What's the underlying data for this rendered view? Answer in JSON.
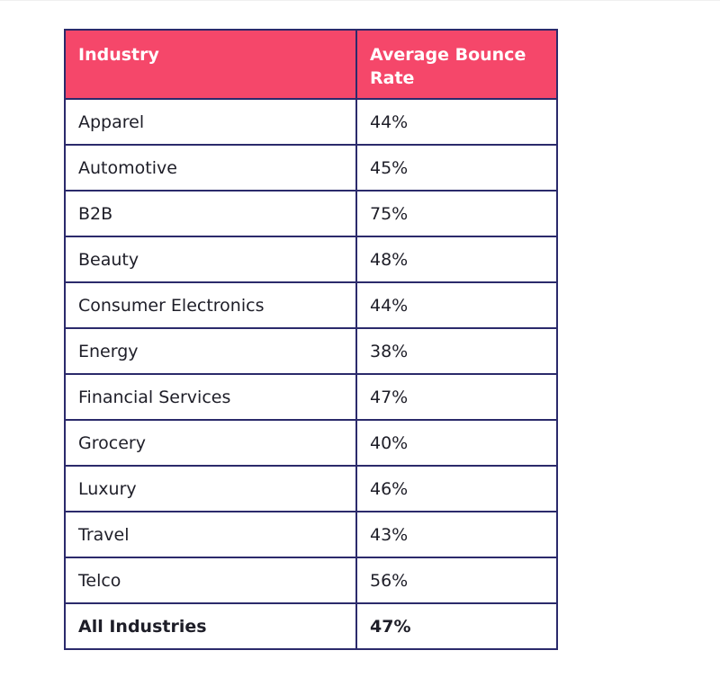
{
  "table": {
    "headers": [
      "Industry",
      "Average Bounce Rate"
    ],
    "rows": [
      [
        "Apparel",
        "44%"
      ],
      [
        "Automotive",
        "45%"
      ],
      [
        "B2B",
        "75%"
      ],
      [
        "Beauty",
        "48%"
      ],
      [
        "Consumer Electronics",
        "44%"
      ],
      [
        "Energy",
        "38%"
      ],
      [
        "Financial Services",
        "47%"
      ],
      [
        "Grocery",
        "40%"
      ],
      [
        "Luxury",
        "46%"
      ],
      [
        "Travel",
        "43%"
      ],
      [
        "Telco",
        "56%"
      ],
      [
        "All Industries",
        "47%"
      ]
    ]
  },
  "colors": {
    "header_bg": "#f5476a",
    "header_text": "#ffffff",
    "border": "#2b2a6b",
    "body_text": "#1e1e28"
  }
}
